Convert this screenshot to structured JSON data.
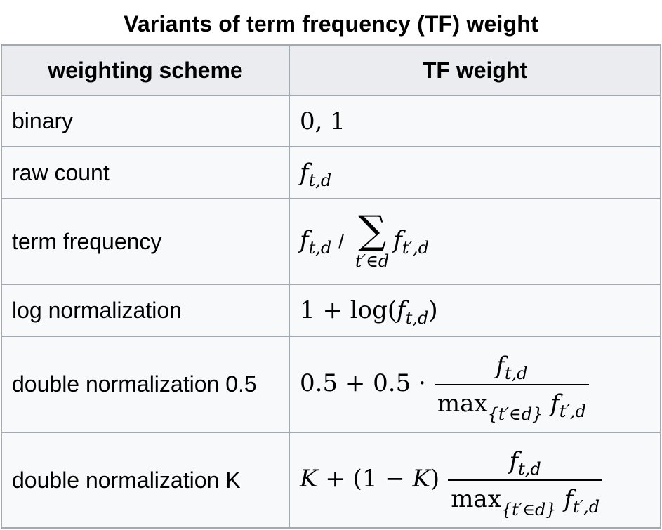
{
  "caption": "Variants of term frequency (TF) weight",
  "header": {
    "col1": "weighting scheme",
    "col2": "TF weight"
  },
  "rows": [
    {
      "scheme": "binary",
      "weight": "0, 1"
    },
    {
      "scheme": "raw count",
      "weight": "f_{t,d}"
    },
    {
      "scheme": "term frequency",
      "weight": "f_{t,d} / Σ_{t′∈d} f_{t′,d}"
    },
    {
      "scheme": "log normalization",
      "weight": "1 + log(f_{t,d})"
    },
    {
      "scheme": "double normalization 0.5",
      "weight": "0.5 + 0.5 · f_{t,d} / max_{t′∈d} f_{t′,d}"
    },
    {
      "scheme": "double normalization K",
      "weight": "K + (1 − K) f_{t,d} / max_{t′∈d} f_{t′,d}"
    }
  ],
  "math": {
    "f": "f",
    "sub_td": "t,d",
    "sub_tpd": "t′,d",
    "slash": "/",
    "sum": "∑",
    "sum_limit": "t′∈d",
    "max_limit": "{t′∈d}",
    "max": "max",
    "binary": "0, 1",
    "log_prefix": "1 + log(",
    "close_paren": ")",
    "half_prefix": "0.5 + 0.5 ·",
    "k": "K",
    "k_prefix": "+ (1 − ",
    "k_suffix": ")"
  }
}
